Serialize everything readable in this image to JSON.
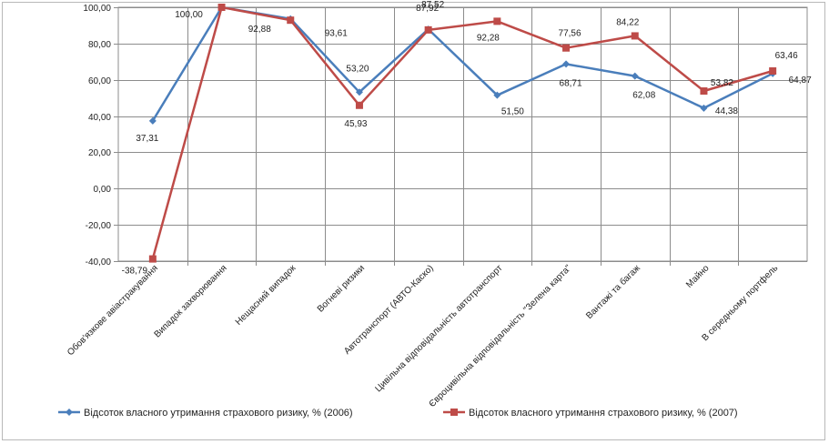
{
  "chart_data": {
    "type": "line",
    "categories": [
      "Обов'язкове авіастракування",
      "Випадок захворювання",
      "Нещасний випадок",
      "Вогневі ризики",
      "Автотранспорт (АВТО-Каско)",
      "Цивільна відповідальність автотранспорт",
      "Євроцивільна відповідальність \"Зелена карта\"",
      "Вантажі та багаж",
      "Майно",
      "В середньому портфель"
    ],
    "series": [
      {
        "name": "Відсоток власного утримання страхового ризику, % (2006)",
        "color": "#4a7ebb",
        "marker": "diamond",
        "values": [
          37.31,
          100.0,
          93.61,
          53.2,
          87.92,
          51.5,
          68.71,
          62.08,
          44.38,
          63.46
        ],
        "labels": [
          "37,31",
          "100,00",
          "93,61",
          "53,20",
          "87,92",
          "51,50",
          "68,71",
          "62,08",
          "44,38",
          "63,46"
        ]
      },
      {
        "name": "Відсоток власного утримання страхового ризику, % (2007)",
        "color": "#be4b48",
        "marker": "square",
        "values": [
          -38.79,
          100.0,
          92.88,
          45.93,
          87.52,
          92.28,
          77.56,
          84.22,
          53.82,
          64.87
        ],
        "labels": [
          "-38,79",
          "",
          "92,88",
          "45,93",
          "87,52",
          "92,28",
          "77,56",
          "84,22",
          "53,82",
          "64,87"
        ]
      }
    ],
    "yticks": [
      "100,00",
      "80,00",
      "60,00",
      "40,00",
      "20,00",
      "0,00",
      "-20,00",
      "-40,00"
    ],
    "ytick_values": [
      100,
      80,
      60,
      40,
      20,
      0,
      -20,
      -40
    ],
    "ylim": [
      -40,
      100
    ],
    "grid": true,
    "legend_position": "bottom"
  }
}
